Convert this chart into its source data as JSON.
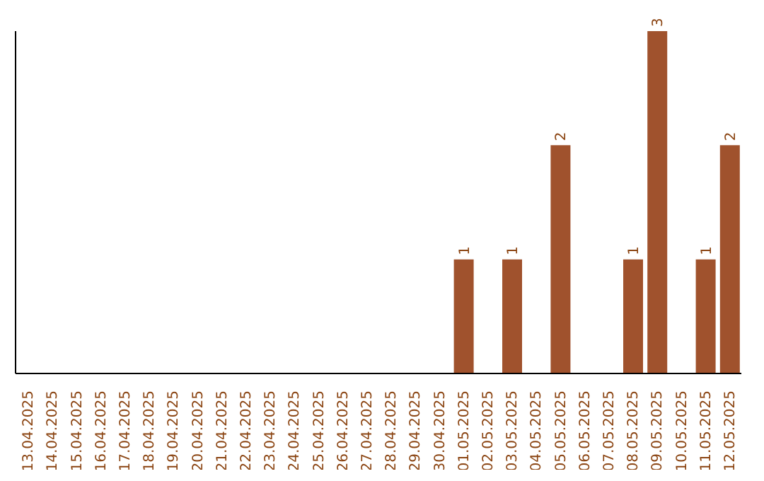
{
  "chart_data": {
    "type": "bar",
    "categories": [
      "13.04.2025",
      "14.04.2025",
      "15.04.2025",
      "16.04.2025",
      "17.04.2025",
      "18.04.2025",
      "19.04.2025",
      "20.04.2025",
      "21.04.2025",
      "22.04.2025",
      "23.04.2025",
      "24.04.2025",
      "25.04.2025",
      "26.04.2025",
      "27.04.2025",
      "28.04.2025",
      "29.04.2025",
      "30.04.2025",
      "01.05.2025",
      "02.05.2025",
      "03.05.2025",
      "04.05.2025",
      "05.05.2025",
      "06.05.2025",
      "07.05.2025",
      "08.05.2025",
      "09.05.2025",
      "10.05.2025",
      "11.05.2025",
      "12.05.2025"
    ],
    "values": [
      null,
      null,
      null,
      null,
      null,
      null,
      null,
      null,
      null,
      null,
      null,
      null,
      null,
      null,
      null,
      null,
      null,
      null,
      1,
      null,
      1,
      null,
      2,
      null,
      null,
      1,
      3,
      null,
      1,
      2
    ],
    "data_labels": true,
    "color": "#a0522d",
    "grid": false,
    "legend": false
  }
}
